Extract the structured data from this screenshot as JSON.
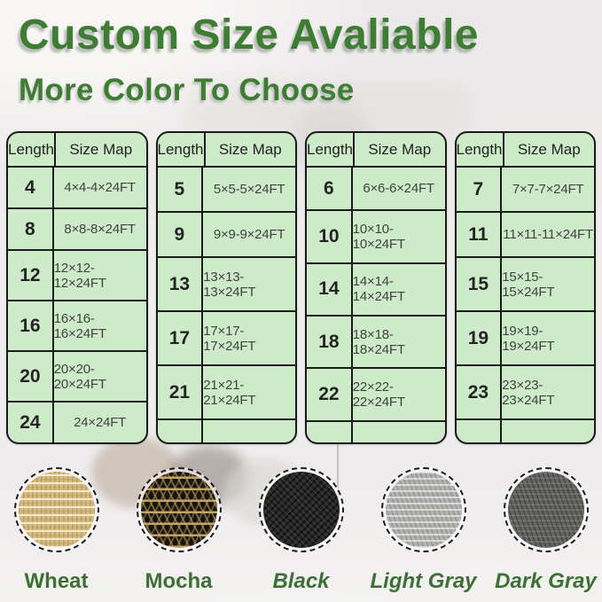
{
  "header": {
    "title": "Custom Size Avaliable",
    "subtitle": "More Color To Choose"
  },
  "tables": [
    {
      "headers": [
        "Length",
        "Size Map"
      ],
      "rows": [
        [
          "4",
          "4×4-4×24FT"
        ],
        [
          "8",
          "8×8-8×24FT"
        ],
        [
          "12",
          "12×12-12×24FT"
        ],
        [
          "16",
          "16×16-16×24FT"
        ],
        [
          "20",
          "20×20-20×24FT"
        ],
        [
          "24",
          "24×24FT"
        ]
      ]
    },
    {
      "headers": [
        "Length",
        "Size Map"
      ],
      "rows": [
        [
          "5",
          "5×5-5×24FT"
        ],
        [
          "9",
          "9×9-9×24FT"
        ],
        [
          "13",
          "13×13-13×24FT"
        ],
        [
          "17",
          "17×17-17×24FT"
        ],
        [
          "21",
          "21×21-21×24FT"
        ],
        [
          "",
          ""
        ]
      ]
    },
    {
      "headers": [
        "Length",
        "Size Map"
      ],
      "rows": [
        [
          "6",
          "6×6-6×24FT"
        ],
        [
          "10",
          "10×10-10×24FT"
        ],
        [
          "14",
          "14×14-14×24FT"
        ],
        [
          "18",
          "18×18-18×24FT"
        ],
        [
          "22",
          "22×22-22×24FT"
        ],
        [
          "",
          ""
        ]
      ]
    },
    {
      "headers": [
        "Length",
        "Size Map"
      ],
      "rows": [
        [
          "7",
          "7×7-7×24FT"
        ],
        [
          "11",
          "11×11-11×24FT"
        ],
        [
          "15",
          "15×15-15×24FT"
        ],
        [
          "19",
          "19×19-19×24FT"
        ],
        [
          "23",
          "23×23-23×24FT"
        ],
        [
          "",
          ""
        ]
      ]
    }
  ],
  "swatches": [
    {
      "label": "Wheat",
      "color": "#d9bc82"
    },
    {
      "label": "Mocha",
      "color": "#17140e"
    },
    {
      "label": "Black",
      "color": "#262625"
    },
    {
      "label": "Light Gray",
      "color": "#b3b3b1"
    },
    {
      "label": "Dark Gray",
      "color": "#636361"
    }
  ],
  "colors": {
    "heading_green": "#3f7d35",
    "label_green": "#3e6f35",
    "table_background": "#cdebc8",
    "table_border": "#1b1b1b"
  }
}
